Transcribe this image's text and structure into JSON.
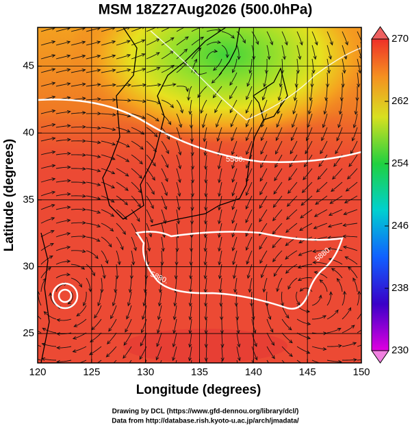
{
  "title": "MSM 18Z27Aug2026 (500.0hPa)",
  "x_axis": {
    "label": "Longitude (degrees)",
    "lim": [
      120,
      150
    ],
    "ticks": [
      120,
      125,
      130,
      135,
      140,
      145,
      150
    ]
  },
  "y_axis": {
    "label": "Latitude  (degrees)",
    "lim": [
      22.8,
      47.9
    ],
    "ticks": [
      25,
      30,
      35,
      40,
      45
    ]
  },
  "colorbar": {
    "lim": [
      230,
      270
    ],
    "ticks": [
      230,
      238,
      246,
      254,
      262,
      270
    ]
  },
  "contour_labels": [
    "5580.",
    "5880.",
    "5880."
  ],
  "credits": [
    "Drawing by DCL (https://www.gfd-dennou.org/library/dcl/)",
    "Data from http://database.rish.kyoto-u.ac.jp/arch/jmadata/"
  ]
}
